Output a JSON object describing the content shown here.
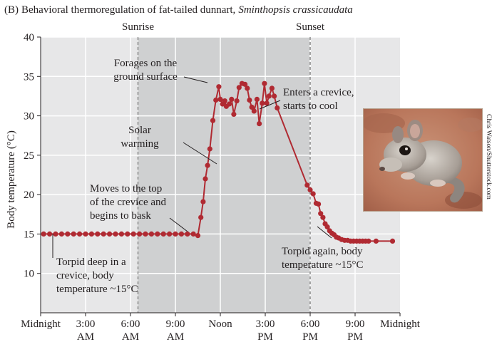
{
  "figure": {
    "panel_label": "(B)",
    "title_main": "Behavioral thermoregulation of fat-tailed dunnart,",
    "title_species": "Sminthopsis crassicaudata",
    "photo_credit": "Chris Watson/Shutterstock.com",
    "photo_subject": "fat-tailed dunnart photograph"
  },
  "colors": {
    "plot_bg": "#e7e7e8",
    "day_band": "#cfd0d1",
    "grid": "#ffffff",
    "series": "#b02a32",
    "text": "#231f20"
  },
  "chart_data": {
    "type": "line",
    "title": "Behavioral thermoregulation of fat-tailed dunnart, Sminthopsis crassicaudata",
    "xlabel": "",
    "ylabel": "Body temperature (°C)",
    "xlim": [
      0,
      24
    ],
    "ylim": [
      5,
      40
    ],
    "yticks": [
      10,
      15,
      20,
      25,
      30,
      35,
      40
    ],
    "xticks": [
      {
        "x": 0,
        "l1": "Midnight",
        "l2": ""
      },
      {
        "x": 3,
        "l1": "3:00",
        "l2": "AM"
      },
      {
        "x": 6,
        "l1": "6:00",
        "l2": "AM"
      },
      {
        "x": 9,
        "l1": "9:00",
        "l2": "AM"
      },
      {
        "x": 12,
        "l1": "Noon",
        "l2": ""
      },
      {
        "x": 15,
        "l1": "3:00",
        "l2": "PM"
      },
      {
        "x": 18,
        "l1": "6:00",
        "l2": "PM"
      },
      {
        "x": 21,
        "l1": "9:00",
        "l2": "PM"
      },
      {
        "x": 24,
        "l1": "Midnight",
        "l2": ""
      }
    ],
    "grid": true,
    "markers": [
      {
        "label": "Sunrise",
        "x": 6.5
      },
      {
        "label": "Sunset",
        "x": 18
      }
    ],
    "day_shade": [
      6.5,
      18
    ],
    "series": [
      {
        "points": [
          [
            0.2,
            15
          ],
          [
            0.6,
            15
          ],
          [
            1.0,
            15
          ],
          [
            1.4,
            15
          ],
          [
            1.8,
            15
          ],
          [
            2.2,
            15
          ],
          [
            2.6,
            15
          ],
          [
            3.0,
            15
          ],
          [
            3.4,
            15
          ],
          [
            3.8,
            15
          ],
          [
            4.2,
            15
          ],
          [
            4.6,
            15
          ],
          [
            5.0,
            15
          ],
          [
            5.4,
            15
          ],
          [
            5.8,
            15
          ],
          [
            6.2,
            15
          ],
          [
            6.6,
            15
          ],
          [
            7.0,
            15
          ],
          [
            7.4,
            15
          ],
          [
            7.8,
            15
          ],
          [
            8.2,
            15
          ],
          [
            8.6,
            15
          ],
          [
            9.0,
            15
          ],
          [
            9.4,
            15
          ],
          [
            9.8,
            15
          ],
          [
            10.2,
            15
          ],
          [
            10.5,
            14.8
          ],
          [
            10.7,
            17.1
          ],
          [
            10.85,
            19.1
          ],
          [
            11.0,
            22.0
          ],
          [
            11.15,
            23.7
          ],
          [
            11.3,
            25.8
          ],
          [
            11.5,
            29.4
          ],
          [
            11.7,
            32.0
          ],
          [
            11.9,
            33.7
          ],
          [
            12.0,
            32.1
          ],
          [
            12.15,
            31.5
          ],
          [
            12.3,
            31.9
          ],
          [
            12.4,
            31.2
          ],
          [
            12.6,
            31.5
          ],
          [
            12.75,
            32.1
          ],
          [
            12.9,
            30.2
          ],
          [
            13.1,
            31.9
          ],
          [
            13.25,
            33.6
          ],
          [
            13.45,
            34.1
          ],
          [
            13.65,
            34.0
          ],
          [
            13.8,
            33.5
          ],
          [
            13.95,
            32.0
          ],
          [
            14.1,
            31.1
          ],
          [
            14.25,
            30.6
          ],
          [
            14.45,
            32.1
          ],
          [
            14.6,
            29.0
          ],
          [
            14.8,
            31.6
          ],
          [
            14.95,
            34.1
          ],
          [
            15.1,
            31.6
          ],
          [
            15.25,
            32.5
          ],
          [
            15.45,
            33.5
          ],
          [
            15.6,
            32.5
          ],
          [
            15.8,
            31.0
          ],
          [
            17.8,
            21.2
          ],
          [
            18.0,
            20.6
          ],
          [
            18.2,
            20.1
          ],
          [
            18.4,
            18.9
          ],
          [
            18.55,
            18.8
          ],
          [
            18.7,
            17.6
          ],
          [
            18.85,
            17.1
          ],
          [
            19.0,
            16.3
          ],
          [
            19.15,
            15.9
          ],
          [
            19.3,
            15.4
          ],
          [
            19.45,
            15.1
          ],
          [
            19.6,
            14.9
          ],
          [
            19.75,
            14.6
          ],
          [
            19.9,
            14.5
          ],
          [
            20.1,
            14.3
          ],
          [
            20.3,
            14.2
          ],
          [
            20.5,
            14.2
          ],
          [
            20.7,
            14.1
          ],
          [
            20.9,
            14.1
          ],
          [
            21.1,
            14.1
          ],
          [
            21.3,
            14.1
          ],
          [
            21.5,
            14.1
          ],
          [
            21.7,
            14.1
          ],
          [
            21.9,
            14.1
          ],
          [
            22.4,
            14.1
          ],
          [
            23.5,
            14.1
          ]
        ]
      }
    ],
    "annotations": [
      {
        "lines": [
          "Forages on the",
          "ground surface"
        ]
      },
      {
        "lines": [
          "Enters a crevice,",
          "starts to cool"
        ]
      },
      {
        "lines": [
          "Solar",
          "warming"
        ]
      },
      {
        "lines": [
          "Moves to the top",
          "of the crevice and",
          "begins to bask"
        ]
      },
      {
        "lines": [
          "Torpid deep in a",
          "crevice, body",
          "temperature ~15°C"
        ]
      },
      {
        "lines": [
          "Torpid again, body",
          "temperature ~15°C"
        ]
      }
    ]
  }
}
